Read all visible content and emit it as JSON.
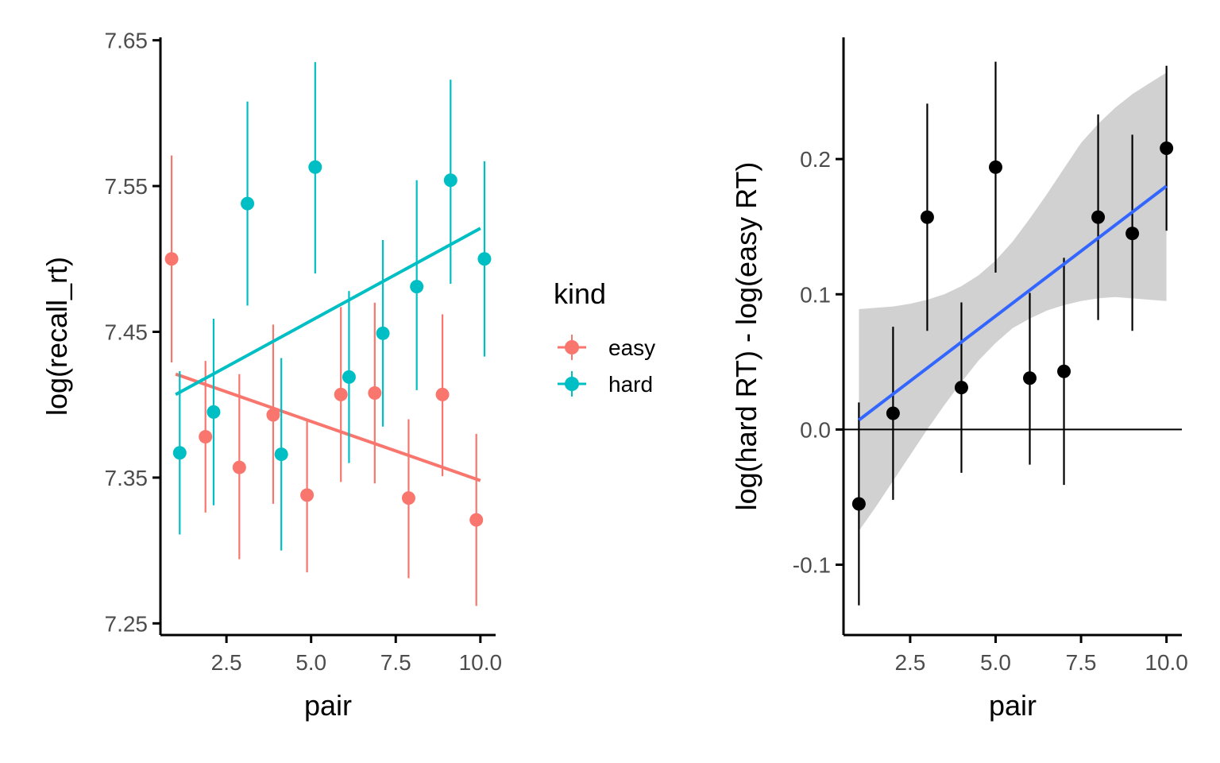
{
  "chart_data": [
    {
      "type": "scatter",
      "xlabel": "pair",
      "ylabel": "log(recall_rt)",
      "xlim": [
        0.55,
        10.45
      ],
      "ylim": [
        7.242,
        7.652
      ],
      "xticks": [
        2.5,
        5.0,
        7.5,
        10.0
      ],
      "xtick_labels": [
        "2.5",
        "5.0",
        "7.5",
        "10.0"
      ],
      "yticks": [
        7.25,
        7.35,
        7.45,
        7.55,
        7.65
      ],
      "ytick_labels": [
        "7.25",
        "7.35",
        "7.45",
        "7.55",
        "7.65"
      ],
      "grid": false,
      "legend": {
        "title": "kind",
        "placement": "right",
        "entries": [
          "easy",
          "hard"
        ]
      },
      "series": [
        {
          "name": "easy",
          "color": "#F8766D",
          "x": [
            1,
            2,
            3,
            4,
            5,
            6,
            7,
            8,
            9,
            10
          ],
          "y": [
            7.5,
            7.378,
            7.357,
            7.393,
            7.338,
            7.407,
            7.408,
            7.336,
            7.407,
            7.321
          ],
          "ymin": [
            7.429,
            7.326,
            7.294,
            7.332,
            7.285,
            7.347,
            7.346,
            7.281,
            7.351,
            7.262
          ],
          "ymax": [
            7.571,
            7.43,
            7.421,
            7.455,
            7.39,
            7.467,
            7.47,
            7.39,
            7.462,
            7.38
          ],
          "trend": {
            "x": [
              1,
              10
            ],
            "y": [
              7.421,
              7.348
            ]
          }
        },
        {
          "name": "hard",
          "color": "#00BFC4",
          "x": [
            1,
            2,
            3,
            4,
            5,
            6,
            7,
            8,
            9,
            10
          ],
          "y": [
            7.367,
            7.395,
            7.538,
            7.366,
            7.563,
            7.419,
            7.449,
            7.481,
            7.554,
            7.5
          ],
          "ymin": [
            7.311,
            7.331,
            7.468,
            7.3,
            7.49,
            7.36,
            7.385,
            7.41,
            7.483,
            7.433
          ],
          "ymax": [
            7.423,
            7.459,
            7.608,
            7.432,
            7.635,
            7.478,
            7.513,
            7.554,
            7.623,
            7.567
          ],
          "trend": {
            "x": [
              1,
              10
            ],
            "y": [
              7.407,
              7.521
            ]
          }
        }
      ]
    },
    {
      "type": "scatter",
      "xlabel": "pair",
      "ylabel": "log(hard RT) - log(easy RT)",
      "xlim": [
        0.55,
        10.45
      ],
      "ylim": [
        -0.152,
        0.29
      ],
      "xticks": [
        2.5,
        5.0,
        7.5,
        10.0
      ],
      "xtick_labels": [
        "2.5",
        "5.0",
        "7.5",
        "10.0"
      ],
      "yticks": [
        -0.1,
        0.0,
        0.1,
        0.2
      ],
      "ytick_labels": [
        "-0.1",
        "0.0",
        "0.1",
        "0.2"
      ],
      "grid": false,
      "hline": 0,
      "points": {
        "color": "#000000",
        "x": [
          1,
          2,
          3,
          4,
          5,
          6,
          7,
          8,
          9,
          10
        ],
        "y": [
          -0.055,
          0.012,
          0.157,
          0.031,
          0.194,
          0.038,
          0.043,
          0.157,
          0.145,
          0.208
        ],
        "ymin": [
          -0.13,
          -0.052,
          0.073,
          -0.032,
          0.116,
          -0.026,
          -0.041,
          0.081,
          0.073,
          0.147
        ],
        "ymax": [
          0.02,
          0.076,
          0.241,
          0.094,
          0.272,
          0.101,
          0.127,
          0.233,
          0.218,
          0.269
        ]
      },
      "fit": {
        "color": "#3366FF",
        "x": [
          1,
          10
        ],
        "y": [
          0.007,
          0.18
        ]
      },
      "ribbon": {
        "color": "#CCCCCC",
        "x": [
          1.0,
          1.5,
          2.0,
          2.5,
          3.0,
          3.5,
          4.0,
          4.5,
          5.0,
          5.5,
          6.0,
          6.5,
          7.0,
          7.5,
          8.0,
          8.5,
          9.0,
          9.5,
          10.0
        ],
        "lower": [
          -0.075,
          -0.057,
          -0.038,
          -0.019,
          0.0,
          0.018,
          0.035,
          0.051,
          0.064,
          0.075,
          0.082,
          0.088,
          0.092,
          0.095,
          0.097,
          0.098,
          0.097,
          0.096,
          0.095
        ],
        "upper": [
          0.089,
          0.09,
          0.091,
          0.093,
          0.096,
          0.1,
          0.106,
          0.114,
          0.125,
          0.139,
          0.156,
          0.174,
          0.193,
          0.212,
          0.226,
          0.238,
          0.248,
          0.256,
          0.264
        ]
      }
    }
  ]
}
